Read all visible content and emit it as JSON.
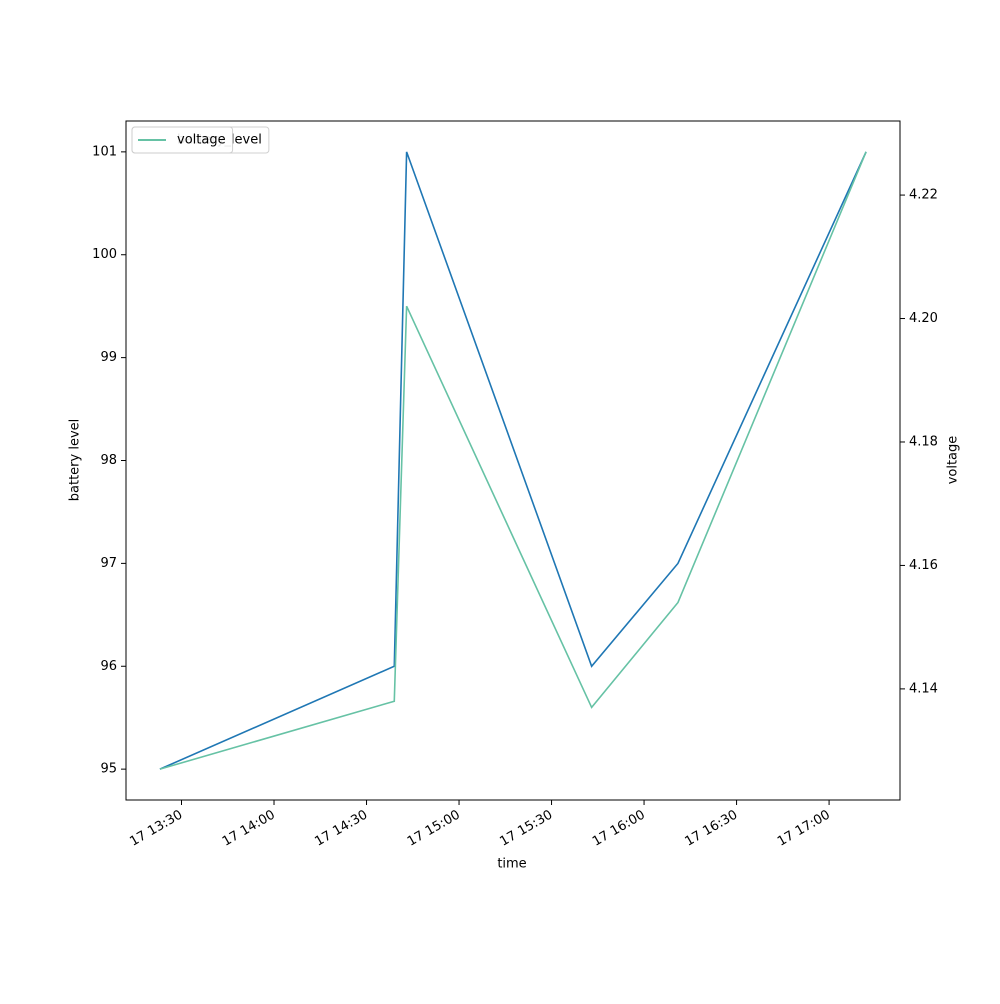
{
  "chart_data": {
    "type": "line",
    "x_label": "time",
    "y_label": "battery level",
    "y2_label": "voltage",
    "x": [
      "17 13:23",
      "17 14:39",
      "17 14:43",
      "17 15:43",
      "17 16:11",
      "17 17:12"
    ],
    "series": [
      {
        "name": "battery_level",
        "color": "#1f77b4",
        "values": [
          95,
          96,
          101,
          96,
          97,
          101
        ]
      },
      {
        "name": "voltage",
        "color": "#66c2a5",
        "axis": "y2",
        "values": [
          4.127,
          4.138,
          4.202,
          4.137,
          4.154,
          4.227
        ]
      }
    ],
    "xlim": [
      "17 13:12",
      "17 17:23"
    ],
    "xticks": [
      "17 13:30",
      "17 14:00",
      "17 14:30",
      "17 15:00",
      "17 15:30",
      "17 16:00",
      "17 16:30",
      "17 17:00"
    ],
    "ylim": [
      94.7,
      101.3
    ],
    "yticks": [
      95,
      96,
      97,
      98,
      99,
      100,
      101
    ],
    "y2lim": [
      4.122,
      4.232
    ],
    "y2ticks": [
      {
        "value": 4.14,
        "label": "4.14"
      },
      {
        "value": 4.16,
        "label": "4.16"
      },
      {
        "value": 4.18,
        "label": "4.18"
      },
      {
        "value": 4.2,
        "label": "4.20"
      },
      {
        "value": 4.22,
        "label": "4.22"
      }
    ],
    "legend": "upper left"
  }
}
